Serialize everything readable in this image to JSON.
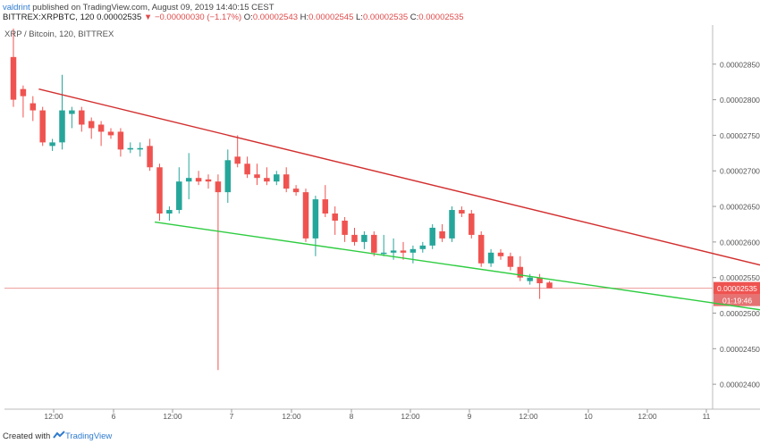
{
  "header": {
    "publisher_user": "valdrint",
    "publisher_text": " published on TradingView.com, August 09, 2019 14:40:15 CEST",
    "symbol": "BITTREX:XRPBTC, 120",
    "last_value": "0.00002535",
    "change_text": "−0.00000030 (−1.17%)",
    "open_label": "O:",
    "open_value": "0.00002543",
    "high_label": "H:",
    "high_value": "0.00002545",
    "low_label": "L:",
    "low_value": "0.00002535",
    "close_label": "C:",
    "close_value": "0.00002535"
  },
  "footer": {
    "created_with": "Created with",
    "brand": "TradingView"
  },
  "chart_data": {
    "type": "candlestick",
    "title": "XRP / Bitcoin, 120, BITTREX",
    "y_ticks": [
      "0.00002850",
      "0.00002800",
      "0.00002750",
      "0.00002700",
      "0.00002650",
      "0.00002600",
      "0.00002550",
      "0.00002500",
      "0.00002450",
      "0.00002400"
    ],
    "y_tick_values": [
      2.85e-05,
      2.8e-05,
      2.75e-05,
      2.7e-05,
      2.65e-05,
      2.6e-05,
      2.55e-05,
      2.5e-05,
      2.45e-05,
      2.4e-05
    ],
    "x_ticks": [
      "12:00",
      "6",
      "12:00",
      "7",
      "12:00",
      "8",
      "12:00",
      "9",
      "12:00",
      "10",
      "12:00",
      "11"
    ],
    "ylim": [
      2.365e-05,
      2.905e-05
    ],
    "current_price": "0.00002535",
    "countdown": "01:19:46",
    "colors": {
      "up": "#26a69a",
      "down": "#ef5350",
      "upper_trendline": "#d32f2f",
      "lower_trendline": "#2ecc40",
      "price_line": "#ef9a9a"
    },
    "candles": [
      {
        "o": 28.6,
        "h": 29.0,
        "l": 27.9,
        "c": 28.0
      },
      {
        "o": 28.15,
        "h": 28.2,
        "l": 27.75,
        "c": 28.05
      },
      {
        "o": 27.95,
        "h": 28.05,
        "l": 27.7,
        "c": 27.85
      },
      {
        "o": 27.85,
        "h": 27.9,
        "l": 27.35,
        "c": 27.4
      },
      {
        "o": 27.35,
        "h": 27.45,
        "l": 27.28,
        "c": 27.4
      },
      {
        "o": 27.4,
        "h": 28.35,
        "l": 27.3,
        "c": 27.85
      },
      {
        "o": 27.8,
        "h": 27.9,
        "l": 27.6,
        "c": 27.85
      },
      {
        "o": 27.85,
        "h": 27.9,
        "l": 27.55,
        "c": 27.65
      },
      {
        "o": 27.7,
        "h": 27.75,
        "l": 27.45,
        "c": 27.6
      },
      {
        "o": 27.65,
        "h": 27.7,
        "l": 27.35,
        "c": 27.55
      },
      {
        "o": 27.55,
        "h": 27.6,
        "l": 27.45,
        "c": 27.5
      },
      {
        "o": 27.55,
        "h": 27.6,
        "l": 27.2,
        "c": 27.3
      },
      {
        "o": 27.3,
        "h": 27.4,
        "l": 27.25,
        "c": 27.32
      },
      {
        "o": 27.3,
        "h": 27.4,
        "l": 27.2,
        "c": 27.32
      },
      {
        "o": 27.35,
        "h": 27.45,
        "l": 27.0,
        "c": 27.05
      },
      {
        "o": 27.05,
        "h": 27.1,
        "l": 26.3,
        "c": 26.4
      },
      {
        "o": 26.4,
        "h": 26.5,
        "l": 26.3,
        "c": 26.45
      },
      {
        "o": 26.45,
        "h": 27.05,
        "l": 26.4,
        "c": 26.85
      },
      {
        "o": 26.85,
        "h": 27.25,
        "l": 26.6,
        "c": 26.9
      },
      {
        "o": 26.9,
        "h": 27.0,
        "l": 26.8,
        "c": 26.85
      },
      {
        "o": 26.88,
        "h": 26.95,
        "l": 26.75,
        "c": 26.85
      },
      {
        "o": 26.85,
        "h": 26.95,
        "l": 24.2,
        "c": 26.7
      },
      {
        "o": 26.7,
        "h": 27.3,
        "l": 26.55,
        "c": 27.15
      },
      {
        "o": 27.2,
        "h": 27.5,
        "l": 27.05,
        "c": 27.1
      },
      {
        "o": 27.1,
        "h": 27.2,
        "l": 26.9,
        "c": 26.95
      },
      {
        "o": 26.95,
        "h": 27.1,
        "l": 26.8,
        "c": 26.9
      },
      {
        "o": 26.9,
        "h": 27.05,
        "l": 26.8,
        "c": 26.85
      },
      {
        "o": 26.85,
        "h": 27.0,
        "l": 26.8,
        "c": 26.95
      },
      {
        "o": 26.95,
        "h": 27.05,
        "l": 26.7,
        "c": 26.75
      },
      {
        "o": 26.75,
        "h": 26.8,
        "l": 26.65,
        "c": 26.7
      },
      {
        "o": 26.7,
        "h": 26.75,
        "l": 26.0,
        "c": 26.05
      },
      {
        "o": 26.05,
        "h": 26.65,
        "l": 25.8,
        "c": 26.6
      },
      {
        "o": 26.6,
        "h": 26.8,
        "l": 26.35,
        "c": 26.4
      },
      {
        "o": 26.4,
        "h": 26.5,
        "l": 26.1,
        "c": 26.3
      },
      {
        "o": 26.3,
        "h": 26.35,
        "l": 26.0,
        "c": 26.1
      },
      {
        "o": 26.1,
        "h": 26.2,
        "l": 25.95,
        "c": 26.0
      },
      {
        "o": 26.0,
        "h": 26.15,
        "l": 25.9,
        "c": 26.1
      },
      {
        "o": 26.1,
        "h": 26.15,
        "l": 25.8,
        "c": 25.85
      },
      {
        "o": 25.85,
        "h": 26.1,
        "l": 25.8,
        "c": 25.85
      },
      {
        "o": 25.85,
        "h": 26.05,
        "l": 25.75,
        "c": 25.88
      },
      {
        "o": 25.88,
        "h": 26.0,
        "l": 25.75,
        "c": 25.85
      },
      {
        "o": 25.85,
        "h": 25.95,
        "l": 25.7,
        "c": 25.9
      },
      {
        "o": 25.9,
        "h": 26.0,
        "l": 25.85,
        "c": 25.95
      },
      {
        "o": 25.95,
        "h": 26.25,
        "l": 25.9,
        "c": 26.2
      },
      {
        "o": 26.15,
        "h": 26.25,
        "l": 26.0,
        "c": 26.05
      },
      {
        "o": 26.05,
        "h": 26.5,
        "l": 26.0,
        "c": 26.45
      },
      {
        "o": 26.45,
        "h": 26.5,
        "l": 26.35,
        "c": 26.4
      },
      {
        "o": 26.4,
        "h": 26.45,
        "l": 26.05,
        "c": 26.1
      },
      {
        "o": 26.1,
        "h": 26.15,
        "l": 25.65,
        "c": 25.7
      },
      {
        "o": 25.7,
        "h": 25.9,
        "l": 25.65,
        "c": 25.85
      },
      {
        "o": 25.85,
        "h": 25.9,
        "l": 25.75,
        "c": 25.8
      },
      {
        "o": 25.8,
        "h": 25.85,
        "l": 25.6,
        "c": 25.65
      },
      {
        "o": 25.65,
        "h": 25.8,
        "l": 25.45,
        "c": 25.5
      },
      {
        "o": 25.45,
        "h": 25.55,
        "l": 25.4,
        "c": 25.5
      },
      {
        "o": 25.5,
        "h": 25.55,
        "l": 25.2,
        "c": 25.42
      },
      {
        "o": 25.43,
        "h": 25.45,
        "l": 25.35,
        "c": 25.35
      }
    ],
    "trendlines": [
      {
        "name": "upper",
        "from_index": 2.6,
        "from_price": 28.15,
        "to_index": 82.5,
        "to_price": 25.48
      },
      {
        "name": "lower",
        "from_index": 14.5,
        "from_price": 26.28,
        "to_index": 80.5,
        "to_price": 24.97
      }
    ]
  }
}
